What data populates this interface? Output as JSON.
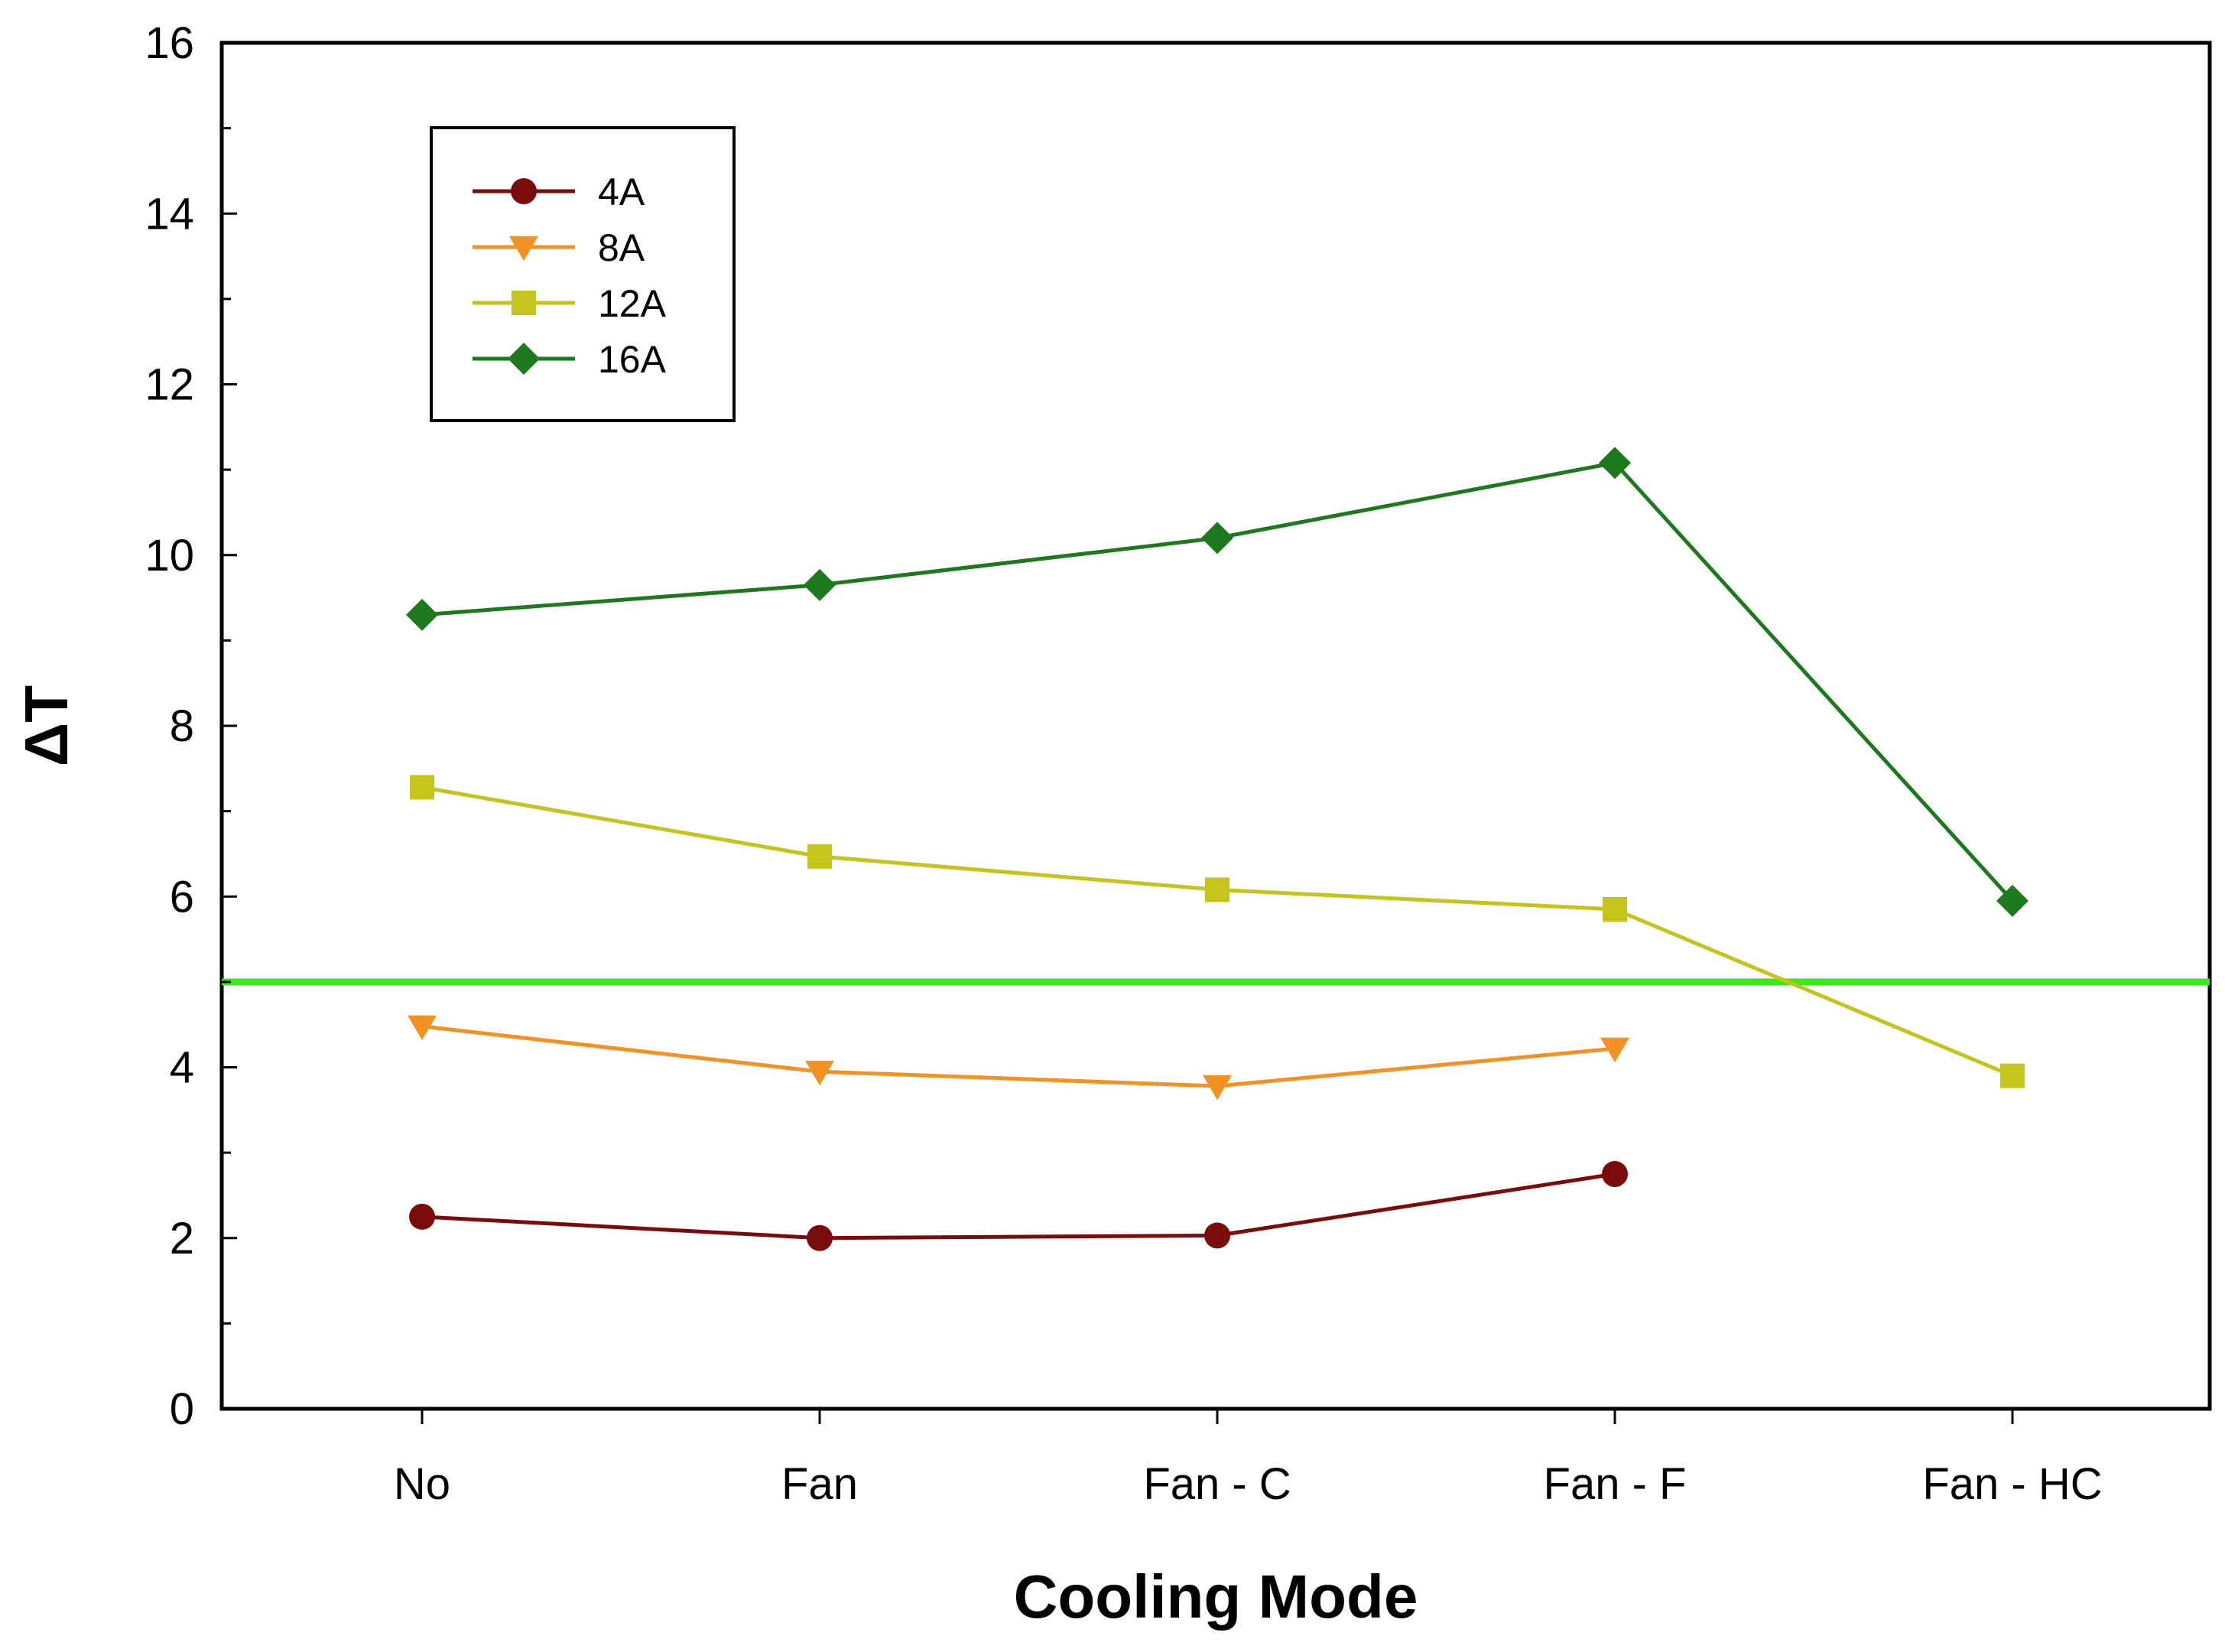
{
  "chart_data": {
    "type": "line",
    "title": "",
    "xlabel": "Cooling Mode",
    "ylabel": "ΔT",
    "categories": [
      "No",
      "Fan",
      "Fan - C",
      "Fan - F",
      "Fan - HC"
    ],
    "ylim": [
      0,
      16
    ],
    "yticks": [
      0,
      2,
      4,
      6,
      8,
      10,
      12,
      14,
      16
    ],
    "grid": false,
    "legend_position": "top-left",
    "reference_line": {
      "y": 5,
      "color": "#33ee11"
    },
    "series": [
      {
        "name": "4A",
        "marker": "circle",
        "color": "#7a0c0c",
        "values": [
          2.25,
          2.0,
          2.03,
          2.75,
          null
        ]
      },
      {
        "name": "8A",
        "marker": "triangle-down",
        "color": "#f39222",
        "values": [
          4.48,
          3.95,
          3.78,
          4.22,
          null
        ]
      },
      {
        "name": "12A",
        "marker": "square",
        "color": "#c4c41c",
        "values": [
          7.28,
          6.47,
          6.08,
          5.85,
          3.9
        ]
      },
      {
        "name": "16A",
        "marker": "diamond",
        "color": "#1c7a1c",
        "values": [
          9.3,
          9.65,
          10.2,
          11.08,
          5.95
        ]
      }
    ]
  }
}
